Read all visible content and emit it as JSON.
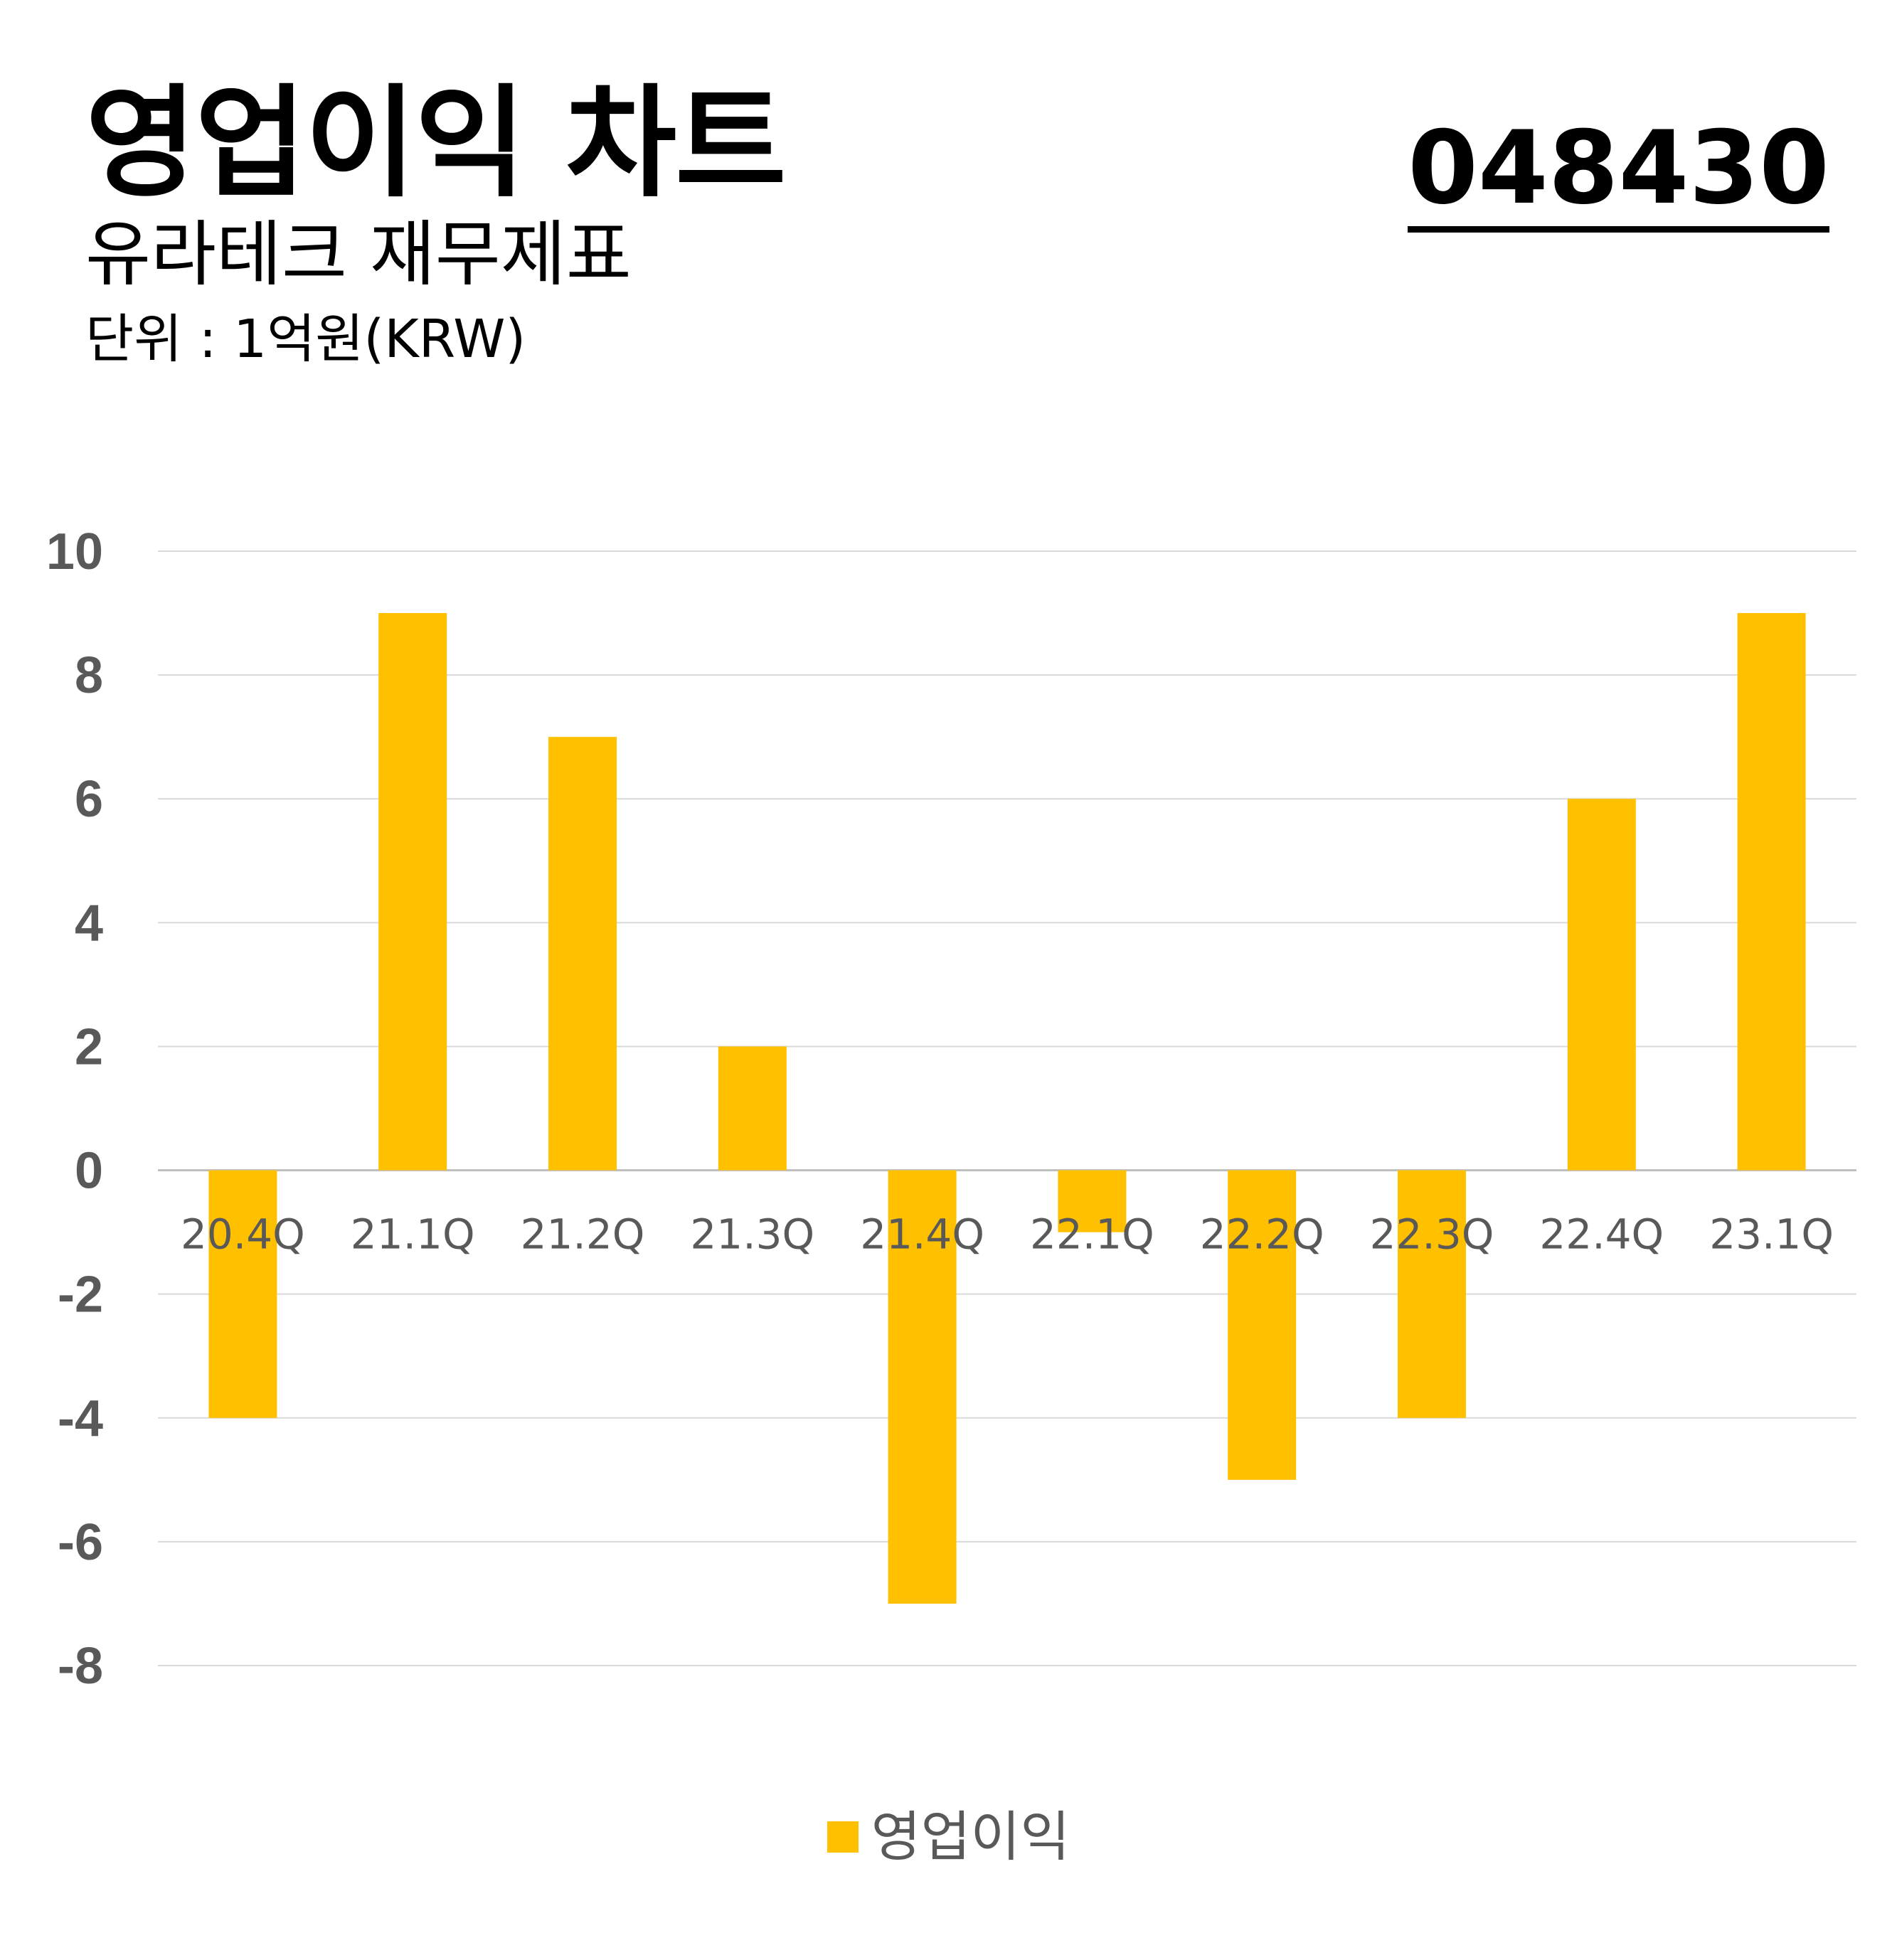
{
  "header": {
    "title": "영업이익 차트",
    "subtitle": "유라테크 재무제표",
    "unit": "단위 : 1억원(KRW)",
    "ticker": "048430"
  },
  "colors": {
    "bar": "#FFC000",
    "grid": "#D9D9D9",
    "tick_text": "#595959"
  },
  "chart_data": {
    "type": "bar",
    "categories": [
      "20.4Q",
      "21.1Q",
      "21.2Q",
      "21.3Q",
      "21.4Q",
      "22.1Q",
      "22.2Q",
      "22.3Q",
      "22.4Q",
      "23.1Q"
    ],
    "series": [
      {
        "name": "영업이익",
        "values": [
          -4,
          9,
          7,
          2,
          -7,
          -1,
          -5,
          -4,
          6,
          9
        ]
      }
    ],
    "ylim": [
      -8,
      10
    ],
    "yticks": [
      10,
      8,
      6,
      4,
      2,
      0,
      -2,
      -4,
      -6,
      -8
    ],
    "grid": true,
    "legend_position": "bottom-center"
  }
}
